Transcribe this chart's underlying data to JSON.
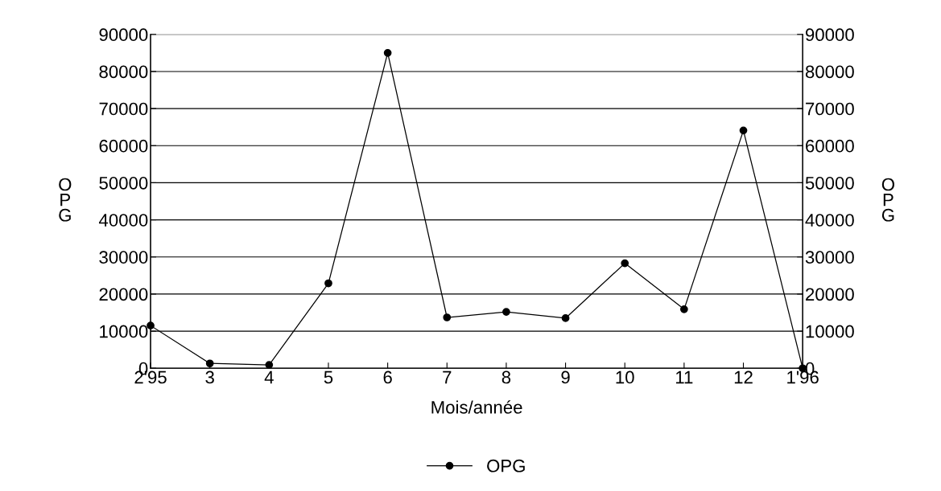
{
  "chart_data": {
    "type": "line",
    "xlabel": "Mois/année",
    "ylabel": "OPG",
    "y2label": "OPG",
    "categories": [
      "2'95",
      "3",
      "4",
      "5",
      "6",
      "7",
      "8",
      "9",
      "10",
      "11",
      "12",
      "1'96"
    ],
    "series": [
      {
        "name": "OPG",
        "color": "#000000",
        "values": [
          11500,
          1300,
          900,
          22900,
          85000,
          13700,
          15200,
          13500,
          28300,
          15900,
          64100,
          0
        ]
      }
    ],
    "ylim": [
      0,
      90000
    ],
    "yticks": [
      0,
      10000,
      20000,
      30000,
      40000,
      50000,
      60000,
      70000,
      80000,
      90000
    ],
    "y2lim": [
      0,
      90000
    ],
    "y2ticks": [
      0,
      10000,
      20000,
      30000,
      40000,
      50000,
      60000,
      70000,
      80000,
      90000
    ],
    "grid": "y",
    "legend": "bottom",
    "marker": "circle",
    "line_style": "solid"
  }
}
